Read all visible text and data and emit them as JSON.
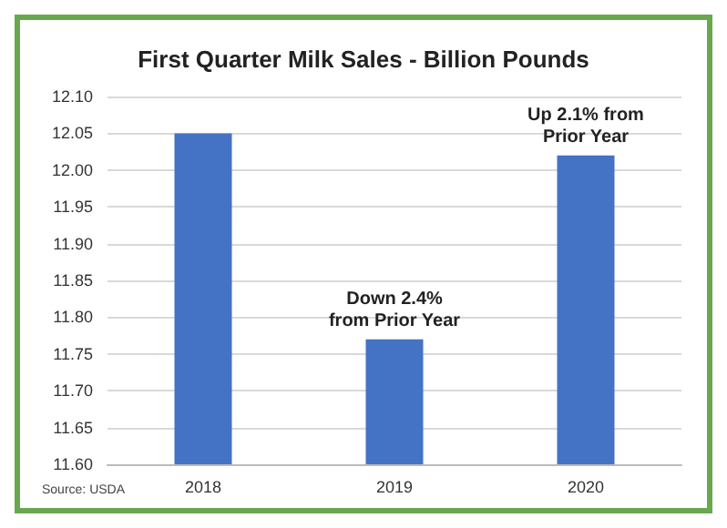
{
  "chart_data": {
    "type": "bar",
    "title": "First Quarter Milk Sales - Billion Pounds",
    "categories": [
      "2018",
      "2019",
      "2020"
    ],
    "values": [
      12.05,
      11.77,
      12.02
    ],
    "color": "#4472c4",
    "ylim": [
      11.6,
      12.1
    ],
    "yticks": [
      {
        "value": 11.6,
        "label": "11.60"
      },
      {
        "value": 11.65,
        "label": "11.65"
      },
      {
        "value": 11.7,
        "label": "11.70"
      },
      {
        "value": 11.75,
        "label": "11.75"
      },
      {
        "value": 11.8,
        "label": "11.80"
      },
      {
        "value": 11.85,
        "label": "11.85"
      },
      {
        "value": 11.9,
        "label": "11.90"
      },
      {
        "value": 11.95,
        "label": "11.95"
      },
      {
        "value": 12.0,
        "label": "12.00"
      },
      {
        "value": 12.05,
        "label": "12.05"
      },
      {
        "value": 12.1,
        "label": "12.10"
      }
    ],
    "grid": "y",
    "annotations": [
      {
        "text": "Down 2.4%\nfrom Prior Year",
        "x": "2019",
        "y": 11.77
      },
      {
        "text": "Up 2.1% from\nPrior Year",
        "x": "2020",
        "y": 12.02
      },
      "Source: USDA"
    ]
  }
}
